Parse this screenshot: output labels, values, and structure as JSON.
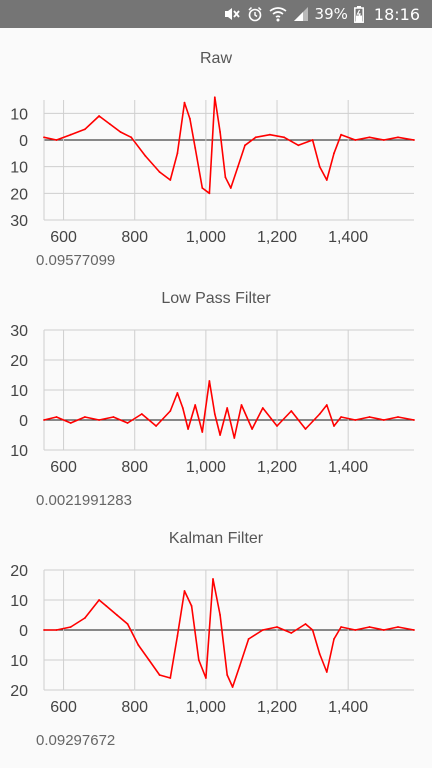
{
  "status_bar": {
    "battery": "39%",
    "time": "18:16",
    "icons": [
      "mute-icon",
      "alarm-icon",
      "wifi-icon",
      "signal-icon",
      "battery-icon"
    ]
  },
  "series_color": "#ff0000",
  "charts": [
    {
      "title": "Raw",
      "value": "0.09577099"
    },
    {
      "title": "Low Pass Filter",
      "value": "0.0021991283"
    },
    {
      "title": "Kalman Filter",
      "value": "0.09297672"
    }
  ],
  "chart_data": [
    {
      "type": "line",
      "title": "Raw",
      "xlim": [
        545,
        1585
      ],
      "ylim": [
        -30,
        15
      ],
      "x_ticks": [
        600,
        800,
        1000,
        1200,
        1400
      ],
      "x_tick_labels": [
        "600",
        "800",
        "1,000",
        "1,200",
        "1,400"
      ],
      "y_ticks": [
        10,
        0,
        -10,
        -20,
        -30
      ],
      "y_tick_labels": [
        "10",
        "0",
        "10",
        "20",
        "30"
      ],
      "grid": true,
      "series": [
        {
          "color": "#ff0000",
          "x": [
            545,
            580,
            620,
            660,
            700,
            730,
            760,
            790,
            830,
            870,
            900,
            920,
            940,
            955,
            970,
            990,
            1010,
            1025,
            1040,
            1055,
            1070,
            1090,
            1110,
            1140,
            1180,
            1220,
            1260,
            1300,
            1320,
            1340,
            1360,
            1380,
            1420,
            1460,
            1500,
            1540,
            1585
          ],
          "y": [
            1,
            0,
            2,
            4,
            9,
            6,
            3,
            1,
            -6,
            -12,
            -15,
            -5,
            14,
            8,
            -3,
            -18,
            -20,
            16,
            3,
            -14,
            -18,
            -10,
            -2,
            1,
            2,
            1,
            -2,
            0,
            -10,
            -15,
            -5,
            2,
            0,
            1,
            0,
            1,
            0
          ]
        }
      ]
    },
    {
      "type": "line",
      "title": "Low Pass Filter",
      "xlim": [
        545,
        1585
      ],
      "ylim": [
        -10,
        30
      ],
      "x_ticks": [
        600,
        800,
        1000,
        1200,
        1400
      ],
      "x_tick_labels": [
        "600",
        "800",
        "1,000",
        "1,200",
        "1,400"
      ],
      "y_ticks": [
        30,
        20,
        10,
        0,
        -10
      ],
      "y_tick_labels": [
        "30",
        "20",
        "10",
        "0",
        "10"
      ],
      "grid": true,
      "series": [
        {
          "color": "#ff0000",
          "x": [
            545,
            580,
            620,
            660,
            700,
            740,
            780,
            820,
            860,
            900,
            920,
            935,
            950,
            970,
            990,
            1010,
            1025,
            1040,
            1060,
            1080,
            1100,
            1130,
            1160,
            1200,
            1240,
            1280,
            1320,
            1340,
            1360,
            1380,
            1420,
            1460,
            1500,
            1540,
            1585
          ],
          "y": [
            0,
            1,
            -1,
            1,
            0,
            1,
            -1,
            2,
            -2,
            3,
            9,
            4,
            -3,
            5,
            -4,
            13,
            2,
            -5,
            4,
            -6,
            5,
            -3,
            4,
            -2,
            3,
            -3,
            2,
            5,
            -2,
            1,
            0,
            1,
            0,
            1,
            0
          ]
        }
      ]
    },
    {
      "type": "line",
      "title": "Kalman Filter",
      "xlim": [
        545,
        1585
      ],
      "ylim": [
        -20,
        20
      ],
      "x_ticks": [
        600,
        800,
        1000,
        1200,
        1400
      ],
      "x_tick_labels": [
        "600",
        "800",
        "1,000",
        "1,200",
        "1,400"
      ],
      "y_ticks": [
        20,
        10,
        0,
        -10,
        -20
      ],
      "y_tick_labels": [
        "20",
        "10",
        "0",
        "10",
        "20"
      ],
      "grid": true,
      "series": [
        {
          "color": "#ff0000",
          "x": [
            545,
            580,
            620,
            660,
            700,
            720,
            750,
            780,
            810,
            840,
            870,
            900,
            920,
            940,
            960,
            980,
            1000,
            1020,
            1040,
            1060,
            1075,
            1095,
            1120,
            1160,
            1200,
            1240,
            1280,
            1300,
            1320,
            1340,
            1360,
            1380,
            1420,
            1460,
            1500,
            1540,
            1585
          ],
          "y": [
            0,
            0,
            1,
            4,
            10,
            8,
            5,
            2,
            -5,
            -10,
            -15,
            -16,
            -2,
            13,
            8,
            -10,
            -16,
            17,
            5,
            -15,
            -19,
            -12,
            -3,
            0,
            1,
            -1,
            2,
            0,
            -8,
            -14,
            -3,
            1,
            0,
            1,
            0,
            1,
            0
          ]
        }
      ]
    }
  ]
}
